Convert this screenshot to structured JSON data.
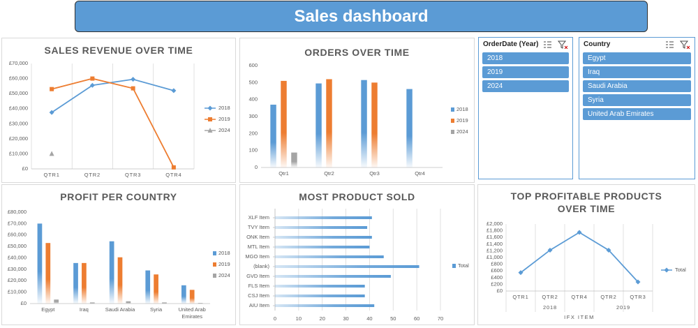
{
  "header": {
    "title": "Sales dashboard"
  },
  "chart_data": [
    {
      "type": "line",
      "title": "SALES REVENUE OVER TIME",
      "categories": [
        "QTR1",
        "QTR2",
        "QTR3",
        "QTR4"
      ],
      "series": [
        {
          "name": "2018",
          "color": "#5b9bd5",
          "marker": "diamond",
          "values": [
            37500,
            55500,
            59500,
            52000
          ]
        },
        {
          "name": "2019",
          "color": "#ed7d31",
          "marker": "square",
          "values": [
            53000,
            60000,
            53500,
            1000
          ]
        },
        {
          "name": "2024",
          "color": "#a5a5a5",
          "marker": "triangle",
          "values": [
            10000,
            null,
            null,
            null
          ]
        }
      ],
      "ylim": [
        0,
        70000
      ],
      "yticks": [
        {
          "value": 0,
          "label": "£0"
        },
        {
          "value": 10000,
          "label": "£10,000"
        },
        {
          "value": 20000,
          "label": "£20,000"
        },
        {
          "value": 30000,
          "label": "£30,000"
        },
        {
          "value": 40000,
          "label": "£40,000"
        },
        {
          "value": 50000,
          "label": "£50,000"
        },
        {
          "value": 60000,
          "label": "£60,000"
        },
        {
          "value": 70000,
          "label": "£70,000"
        }
      ],
      "grid": "category",
      "legend": "right"
    },
    {
      "type": "bar",
      "title": "ORDERS OVER TIME",
      "categories": [
        "Qtr1",
        "Qtr2",
        "Qtr3",
        "Qtr4"
      ],
      "series": [
        {
          "name": "2018",
          "color": "#5b9bd5",
          "values": [
            370,
            495,
            515,
            462
          ]
        },
        {
          "name": "2019",
          "color": "#ed7d31",
          "values": [
            510,
            520,
            500,
            null
          ]
        },
        {
          "name": "2024",
          "color": "#a5a5a5",
          "values": [
            88,
            null,
            null,
            null
          ]
        }
      ],
      "ylim": [
        0,
        600
      ],
      "yticks": [
        0,
        100,
        200,
        300,
        400,
        500,
        600
      ],
      "legend": "right"
    },
    {
      "type": "bar",
      "title": "PROFIT PER COUNTRY",
      "categories": [
        "Egypt",
        "Iraq",
        "Saudi Arabia",
        "Syria",
        "United Arab Emirates"
      ],
      "series": [
        {
          "name": "2018",
          "color": "#5b9bd5",
          "values": [
            70000,
            35500,
            54500,
            29000,
            16000
          ]
        },
        {
          "name": "2019",
          "color": "#ed7d31",
          "values": [
            53000,
            35500,
            40500,
            25500,
            12000
          ]
        },
        {
          "name": "2024",
          "color": "#a5a5a5",
          "values": [
            3500,
            1000,
            2000,
            1000,
            500
          ]
        }
      ],
      "ylim": [
        0,
        80000
      ],
      "yticks": [
        {
          "value": 0,
          "label": "£0"
        },
        {
          "value": 10000,
          "label": "£10,000"
        },
        {
          "value": 20000,
          "label": "£20,000"
        },
        {
          "value": 30000,
          "label": "£30,000"
        },
        {
          "value": 40000,
          "label": "£40,000"
        },
        {
          "value": 50000,
          "label": "£50,000"
        },
        {
          "value": 60000,
          "label": "£60,000"
        },
        {
          "value": 70000,
          "label": "£70,000"
        },
        {
          "value": 80000,
          "label": "£80,000"
        }
      ],
      "legend": "right"
    },
    {
      "type": "bar",
      "orientation": "horizontal",
      "title": "MOST PRODUCT SOLD",
      "categories": [
        "XLF Item",
        "TVY Item",
        "ONK Item",
        "MTL Item",
        "MGO Item",
        "(blank)",
        "GVD Item",
        "FLS Item",
        "CSJ Item",
        "AIU Item"
      ],
      "series": [
        {
          "name": "Total",
          "color": "#5b9bd5",
          "values": [
            41,
            39,
            41,
            40,
            46,
            61,
            49,
            38,
            38,
            42
          ]
        }
      ],
      "xlim": [
        0,
        70
      ],
      "xticks": [
        0,
        10,
        20,
        30,
        40,
        50,
        60,
        70
      ],
      "grid": "value",
      "legend": "right"
    },
    {
      "type": "line",
      "title": "TOP PROFITABLE PRODUCTS OVER TIME",
      "categories": [
        "QTR1",
        "QTR2",
        "QTR4",
        "QTR2",
        "QTR3"
      ],
      "groups": [
        "2018",
        null,
        null,
        "2019",
        null
      ],
      "x_label": "IFX ITEM",
      "series": [
        {
          "name": "Total",
          "color": "#5b9bd5",
          "marker": "diamond",
          "values": [
            550,
            1220,
            1750,
            1220,
            270
          ]
        }
      ],
      "ylim": [
        0,
        2000
      ],
      "yticks": [
        {
          "value": 0,
          "label": "£0"
        },
        {
          "value": 200,
          "label": "£200"
        },
        {
          "value": 400,
          "label": "£400"
        },
        {
          "value": 600,
          "label": "£600"
        },
        {
          "value": 800,
          "label": "£800"
        },
        {
          "value": 1000,
          "label": "£1,000"
        },
        {
          "value": 1200,
          "label": "£1,200"
        },
        {
          "value": 1400,
          "label": "£1,400"
        },
        {
          "value": 1600,
          "label": "£1,600"
        },
        {
          "value": 1800,
          "label": "£1,800"
        },
        {
          "value": 2000,
          "label": "£2,000"
        }
      ],
      "grid": "category",
      "legend": "right"
    }
  ],
  "slicers": [
    {
      "title": "OrderDate (Year)",
      "items": [
        "2018",
        "2019",
        "2024"
      ]
    },
    {
      "title": "Country",
      "items": [
        "Egypt",
        "Iraq",
        "Saudi Arabia",
        "Syria",
        "United Arab Emirates"
      ]
    }
  ]
}
